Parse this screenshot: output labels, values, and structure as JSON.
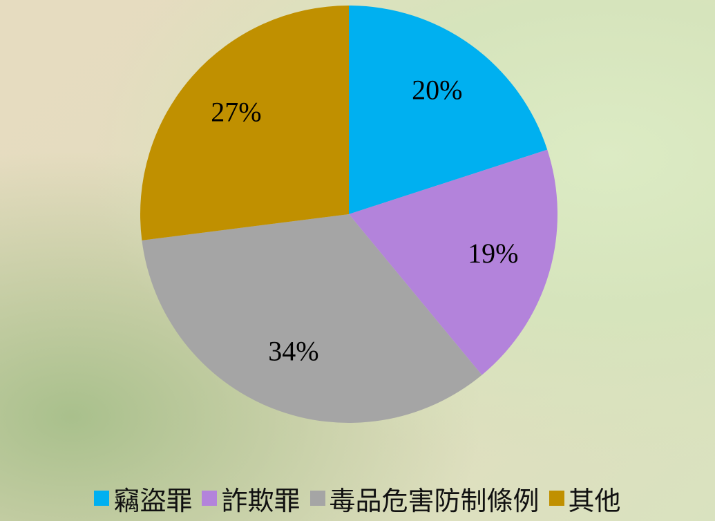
{
  "chart_data": {
    "type": "pie",
    "categories": [
      "竊盜罪",
      "詐欺罪",
      "毒品危害防制條例",
      "其他"
    ],
    "values": [
      20,
      19,
      34,
      27
    ],
    "value_labels": [
      "20%",
      "19%",
      "34%",
      "27%"
    ],
    "colors": [
      "#00b0f0",
      "#b383db",
      "#a5a5a5",
      "#c09000"
    ],
    "legend": "bottom"
  }
}
